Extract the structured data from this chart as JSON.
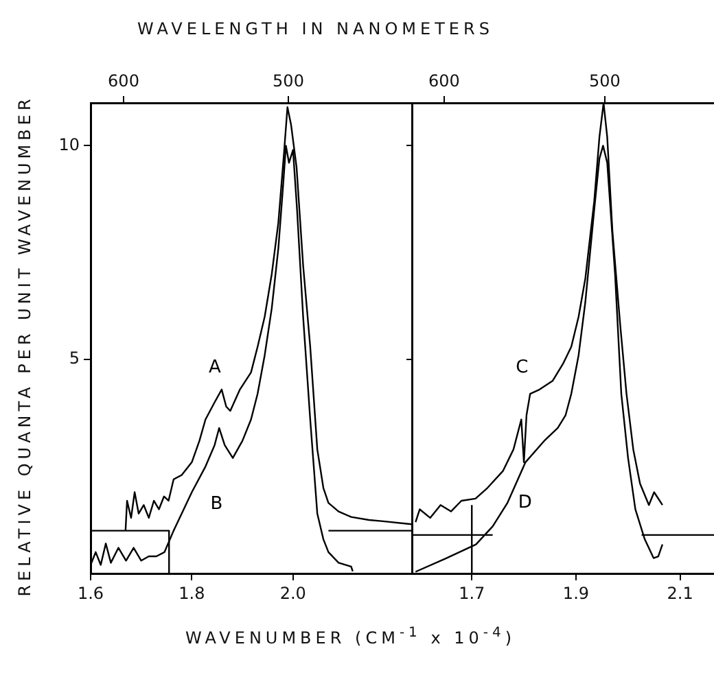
{
  "chart_data": [
    {
      "type": "line",
      "xlabel": "WAVENUMBER (CM$^{-1}$ x 10$^{-4}$)",
      "ylabel": "RELATIVE QUANTA PER UNIT WAVENUMBER",
      "x2label": "WAVELENGTH IN NANOMETERS",
      "xlim": [
        1.6,
        2.235
      ],
      "xticks": [
        1.6,
        1.8,
        {
          "value": 2.0,
          "label": "2.0"
        }
      ],
      "ylim": [
        0,
        11
      ],
      "yticks": [
        5,
        10
      ],
      "x2lim": [
        620,
        425
      ],
      "x2ticks": [
        600,
        500
      ],
      "grid": false,
      "legend": false,
      "marker": "none",
      "line_style": "solid",
      "annotations": [
        {
          "text": "A",
          "x": 1.859,
          "y": 4.3
        },
        {
          "text": "B",
          "x": 1.8,
          "y": 1.9
        }
      ],
      "series": [
        {
          "color": "#000000",
          "x": [
            1.669,
            1.672,
            1.68,
            1.687,
            1.695,
            1.705,
            1.715,
            1.725,
            1.735,
            1.745,
            1.754,
            1.764,
            1.78,
            1.8,
            1.815,
            1.827,
            1.845,
            1.859,
            1.868,
            1.876,
            1.895,
            1.917,
            1.93,
            1.944,
            1.958,
            1.971,
            1.982,
            1.989,
            1.996,
            2.007,
            2.02,
            2.034,
            2.048,
            2.06,
            2.07,
            2.09,
            2.115,
            2.15,
            2.178,
            2.235
          ],
          "values": [
            1.0,
            1.7,
            1.3,
            1.9,
            1.4,
            1.6,
            1.3,
            1.7,
            1.5,
            1.8,
            1.7,
            2.2,
            2.3,
            2.6,
            3.1,
            3.6,
            4.0,
            4.3,
            3.9,
            3.8,
            4.3,
            4.7,
            5.3,
            6.0,
            7.0,
            8.2,
            9.8,
            10.9,
            10.5,
            9.5,
            7.2,
            5.3,
            2.9,
            2.0,
            1.65,
            1.45,
            1.32,
            1.25,
            1.22,
            1.15
          ]
        },
        {
          "color": "#000000",
          "x": [
            1.6,
            1.61,
            1.62,
            1.63,
            1.64,
            1.655,
            1.67,
            1.685,
            1.7,
            1.715,
            1.73,
            1.746,
            1.764,
            1.78,
            1.8,
            1.827,
            1.845,
            1.854,
            1.865,
            1.881,
            1.9,
            1.917,
            1.93,
            1.944,
            1.958,
            1.971,
            1.98,
            1.986,
            1.992,
            2.0,
            2.008,
            2.02,
            2.034,
            2.048,
            2.06,
            2.07,
            2.09,
            2.115,
            2.118
          ],
          "values": [
            0.2,
            0.5,
            0.2,
            0.7,
            0.25,
            0.6,
            0.3,
            0.6,
            0.3,
            0.4,
            0.4,
            0.5,
            1.0,
            1.4,
            1.9,
            2.5,
            3.0,
            3.4,
            3.0,
            2.7,
            3.1,
            3.6,
            4.2,
            5.1,
            6.2,
            7.6,
            9.0,
            10.0,
            9.6,
            9.9,
            8.5,
            6.0,
            3.6,
            1.4,
            0.8,
            0.5,
            0.25,
            0.16,
            0.05
          ]
        },
        {
          "color": "#000000",
          "x": [
            1.6,
            1.755,
            1.755
          ],
          "values": [
            1,
            1,
            0
          ]
        },
        {
          "color": "#000000",
          "x": [
            2.07,
            2.235
          ],
          "values": [
            1,
            1
          ]
        }
      ]
    },
    {
      "type": "line",
      "xlim": [
        1.585,
        2.165
      ],
      "xticks": [
        1.7,
        1.9,
        2.1
      ],
      "ylim": [
        0,
        11
      ],
      "yticks": [
        {
          "value": 5,
          "label": null
        },
        {
          "value": 10,
          "label": null
        }
      ],
      "x2lim": [
        620,
        432
      ],
      "x2ticks": [
        {
          "value": 600,
          "label": "600"
        },
        {
          "value": 500,
          "label": "500"
        }
      ],
      "tick_labels": "x",
      "grid": false,
      "legend": false,
      "marker": "none",
      "line_style": "solid",
      "annotations": [
        {
          "text": "C",
          "x": 1.812,
          "y": 4.2
        },
        {
          "text": "D",
          "x": 1.768,
          "y": 1.64
        }
      ],
      "series": [
        {
          "color": "#000000",
          "x": [
            1.592,
            1.6,
            1.62,
            1.64,
            1.66,
            1.68,
            1.707,
            1.73,
            1.76,
            1.78,
            1.795,
            1.8,
            1.805,
            1.812,
            1.83,
            1.855,
            1.875,
            1.891,
            1.905,
            1.918,
            1.935,
            1.945,
            1.953,
            1.96,
            1.97,
            1.985,
            1.997,
            2.01,
            2.023,
            2.04,
            2.05,
            2.066
          ],
          "values": [
            1.2,
            1.5,
            1.3,
            1.6,
            1.45,
            1.7,
            1.75,
            2.0,
            2.4,
            2.9,
            3.6,
            2.6,
            3.7,
            4.2,
            4.3,
            4.5,
            4.9,
            5.3,
            6.0,
            6.9,
            8.7,
            10.2,
            11.0,
            10.2,
            8.0,
            5.8,
            4.2,
            2.9,
            2.1,
            1.6,
            1.9,
            1.6
          ]
        },
        {
          "color": "#000000",
          "x": [
            1.592,
            1.65,
            1.708,
            1.74,
            1.768,
            1.803,
            1.839,
            1.865,
            1.88,
            1.891,
            1.905,
            1.918,
            1.935,
            1.945,
            1.952,
            1.96,
            1.975,
            1.987,
            2.0,
            2.014,
            2.032,
            2.049,
            2.058,
            2.066
          ],
          "values": [
            0.04,
            0.35,
            0.68,
            1.1,
            1.64,
            2.6,
            3.1,
            3.4,
            3.7,
            4.2,
            5.1,
            6.35,
            8.5,
            9.7,
            10.0,
            9.6,
            7.0,
            4.2,
            2.7,
            1.5,
            0.8,
            0.36,
            0.4,
            0.68
          ]
        },
        {
          "color": "#000000",
          "x": [
            1.585,
            1.74
          ],
          "values": [
            0.9,
            0.9
          ]
        },
        {
          "color": "#000000",
          "x": [
            1.7,
            1.7
          ],
          "values": [
            0,
            1.6
          ]
        },
        {
          "color": "#000000",
          "x": [
            2.026,
            2.165
          ],
          "values": [
            0.9,
            0.9
          ]
        }
      ]
    }
  ]
}
